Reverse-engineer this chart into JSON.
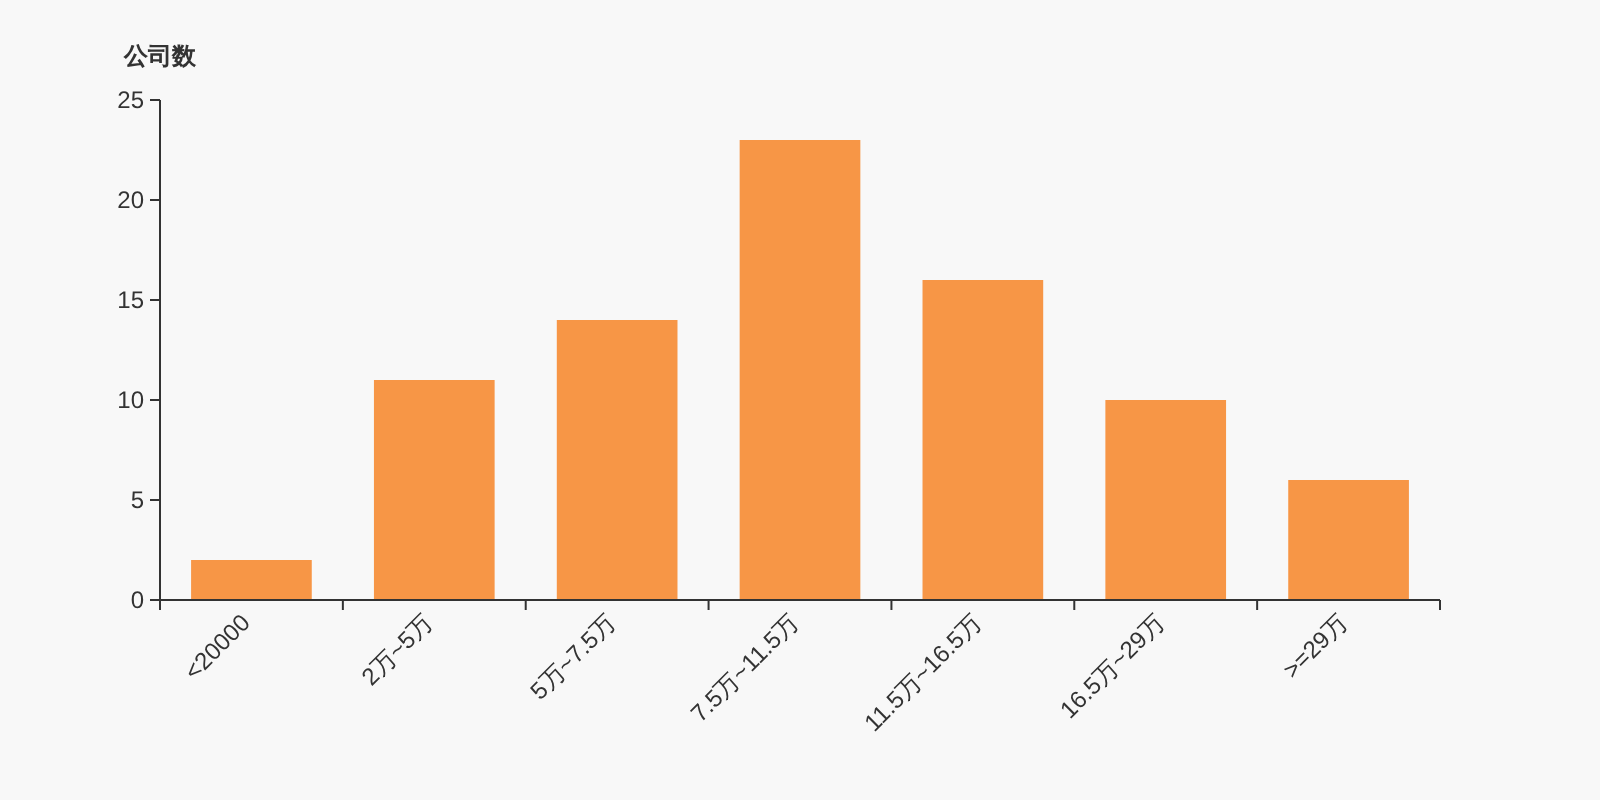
{
  "chart_data": {
    "type": "bar",
    "ylabel": "公司数",
    "categories": [
      "<20000",
      "2万~5万",
      "5万~7.5万",
      "7.5万~11.5万",
      "11.5万~16.5万",
      "16.5万~29万",
      ">=29万"
    ],
    "values": [
      2,
      11,
      14,
      23,
      16,
      10,
      6
    ],
    "color": "#f79646",
    "ylim": [
      0,
      25
    ],
    "yticks": [
      0,
      5,
      10,
      15,
      20,
      25
    ],
    "grid": false
  }
}
